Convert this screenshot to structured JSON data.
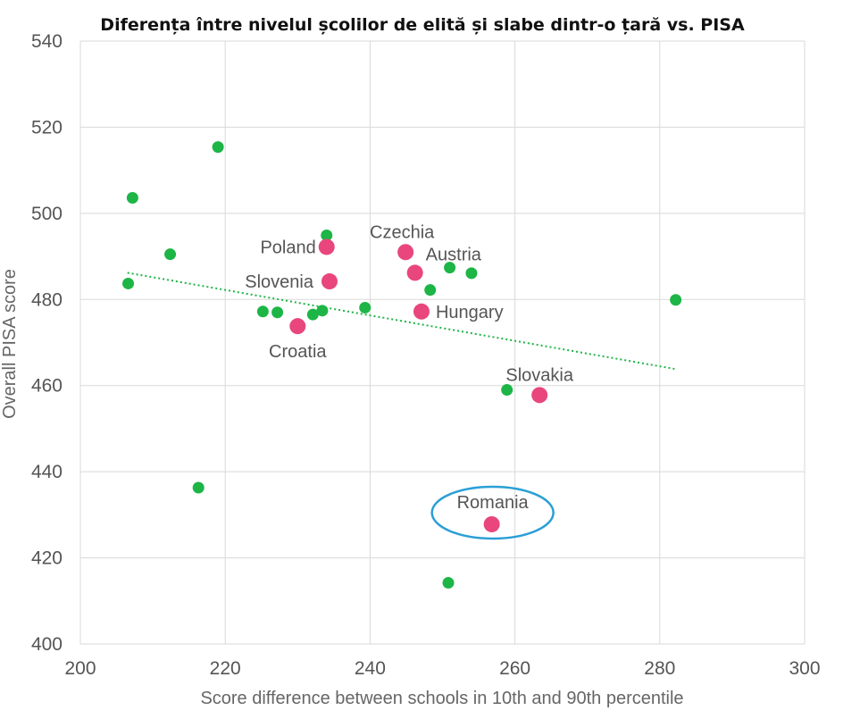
{
  "chart_data": {
    "type": "scatter",
    "title": "Diferența între nivelul școlilor de elită și slabe dintr-o țară vs. PISA",
    "xlabel": "Score difference between schools in 10th and 90th percentile",
    "ylabel": "Overall PISA score",
    "xlim": [
      200,
      300
    ],
    "ylim": [
      400,
      540
    ],
    "x_ticks": [
      "200",
      "220",
      "240",
      "260",
      "280",
      "300"
    ],
    "y_ticks": [
      "400",
      "420",
      "440",
      "460",
      "480",
      "500",
      "520",
      "540"
    ],
    "grid": true,
    "colors": {
      "others": "#1db546",
      "highlighted": "#e8467c",
      "trendline": "#1db546",
      "callout": "#2a9fd6"
    },
    "series": [
      {
        "points": [
          {
            "x": 207.2,
            "y": 503.6
          },
          {
            "x": 206.6,
            "y": 483.7
          },
          {
            "x": 212.4,
            "y": 490.5
          },
          {
            "x": 219.0,
            "y": 515.4
          },
          {
            "x": 216.3,
            "y": 436.3
          },
          {
            "x": 225.2,
            "y": 477.2
          },
          {
            "x": 227.2,
            "y": 477.0
          },
          {
            "x": 232.1,
            "y": 476.5
          },
          {
            "x": 233.4,
            "y": 477.4
          },
          {
            "x": 234.0,
            "y": 494.9
          },
          {
            "x": 239.3,
            "y": 478.1
          },
          {
            "x": 248.3,
            "y": 482.2
          },
          {
            "x": 251.0,
            "y": 487.4
          },
          {
            "x": 254.0,
            "y": 486.1
          },
          {
            "x": 258.9,
            "y": 459.0
          },
          {
            "x": 282.2,
            "y": 479.9
          },
          {
            "x": 250.8,
            "y": 414.2
          }
        ]
      },
      {
        "points": [
          {
            "x": 234.0,
            "y": 492.2,
            "label": "Poland"
          },
          {
            "x": 234.4,
            "y": 484.2,
            "label": "Slovenia"
          },
          {
            "x": 230.0,
            "y": 473.8,
            "label": "Croatia"
          },
          {
            "x": 244.9,
            "y": 491.0,
            "label": "Czechia"
          },
          {
            "x": 246.2,
            "y": 486.2,
            "label": "Austria"
          },
          {
            "x": 247.1,
            "y": 477.2,
            "label": "Hungary"
          },
          {
            "x": 263.4,
            "y": 457.8,
            "label": "Slovakia"
          },
          {
            "x": 256.8,
            "y": 427.8,
            "label": "Romania"
          }
        ]
      }
    ],
    "trendline": {
      "x": [
        206.5,
        282.3
      ],
      "y": [
        486.2,
        463.8
      ]
    },
    "callout": "Romania"
  }
}
